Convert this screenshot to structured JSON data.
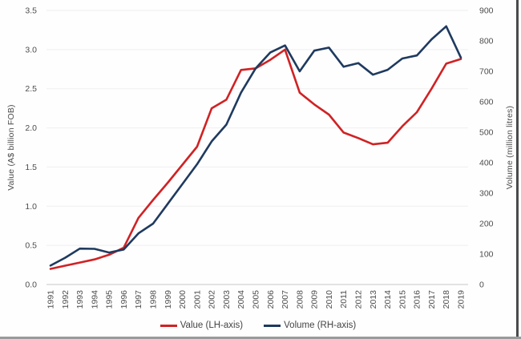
{
  "chart_data": {
    "type": "line",
    "categories": [
      "1991",
      "1992",
      "1993",
      "1994",
      "1995",
      "1996",
      "1997",
      "1998",
      "1999",
      "2000",
      "2001",
      "2002",
      "2003",
      "2004",
      "2005",
      "2006",
      "2007",
      "2008",
      "2009",
      "2010",
      "2011",
      "2012",
      "2013",
      "2014",
      "2015",
      "2016",
      "2017",
      "2018",
      "2019"
    ],
    "series": [
      {
        "name": "Value (LH-axis)",
        "axis": "left",
        "color": "#d02224",
        "values": [
          0.2,
          0.24,
          0.28,
          0.32,
          0.38,
          0.47,
          0.85,
          1.08,
          1.3,
          1.53,
          1.76,
          2.25,
          2.36,
          2.74,
          2.76,
          2.87,
          3.0,
          2.45,
          2.3,
          2.17,
          1.94,
          1.87,
          1.79,
          1.81,
          2.02,
          2.2,
          2.5,
          2.82,
          2.88
        ]
      },
      {
        "name": "Volume (RH-axis)",
        "axis": "right",
        "color": "#1f3a5f",
        "values": [
          62,
          88,
          118,
          117,
          105,
          115,
          168,
          200,
          265,
          330,
          395,
          470,
          525,
          630,
          710,
          762,
          785,
          700,
          768,
          778,
          715,
          727,
          689,
          705,
          742,
          752,
          805,
          848,
          745
        ]
      }
    ],
    "left_axis": {
      "label": "Value (A$ billion FOB)",
      "min": 0,
      "max": 3.5,
      "ticks": [
        "0.0",
        "0.5",
        "1.0",
        "1.5",
        "2.0",
        "2.5",
        "3.0",
        "3.5"
      ]
    },
    "right_axis": {
      "label": "Volume (million litres)",
      "min": 0,
      "max": 900,
      "ticks": [
        "0",
        "100",
        "200",
        "300",
        "400",
        "500",
        "600",
        "700",
        "800",
        "900"
      ]
    },
    "grid": "horizontal-on",
    "legend_position": "bottom-center",
    "title": ""
  },
  "colors": {
    "grid_line": "#efefef",
    "baseline": "#c8c8c8",
    "tick_text": "#4d4d4d",
    "frame_right": "#4a4a4a",
    "frame_bottom": "#9a9a9a"
  }
}
